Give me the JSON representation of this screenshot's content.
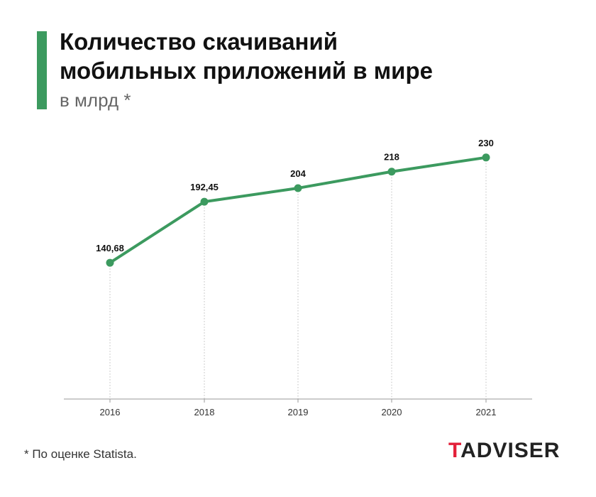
{
  "title_line1": "Количество скачиваний",
  "title_line2": "мобильных приложений в мире",
  "subtitle": "в млрд *",
  "footnote": "* По оценке Statista.",
  "logo": {
    "first": "T",
    "rest": "ADVISER"
  },
  "colors": {
    "accent": "#3c9a5f",
    "logo_red": "#e3203a"
  },
  "chart_data": {
    "type": "line",
    "title": "Количество скачиваний мобильных приложений в мире",
    "subtitle": "в млрд *",
    "xlabel": "",
    "ylabel": "",
    "categories": [
      "2016",
      "2018",
      "2019",
      "2020",
      "2021"
    ],
    "series": [
      {
        "name": "Скачивания, млрд",
        "values": [
          140.68,
          192.45,
          204,
          218,
          230
        ],
        "labels": [
          "140,68",
          "192,45",
          "204",
          "218",
          "230"
        ]
      }
    ],
    "ylim": [
      0,
      240
    ],
    "grid": false,
    "legend": "none"
  }
}
